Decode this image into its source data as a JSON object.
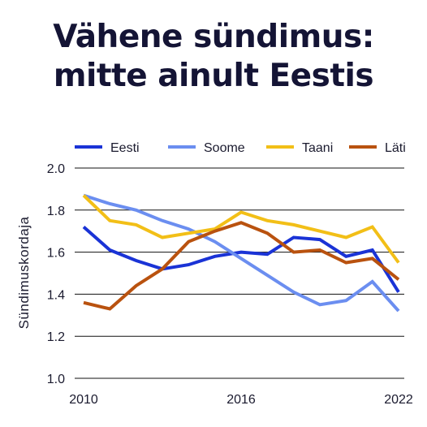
{
  "title_line1": "Vähene sündimus:",
  "title_line2": "mitte ainult Eestis",
  "colors": {
    "text": "#1a1a2e",
    "grid": "#111111"
  },
  "chart_data": {
    "type": "line",
    "title": "Vähene sündimus: mitte ainult Eestis",
    "xlabel": "",
    "ylabel": "Sündimuskordaja",
    "x": [
      2010,
      2011,
      2012,
      2013,
      2014,
      2015,
      2016,
      2017,
      2018,
      2019,
      2020,
      2021,
      2022
    ],
    "xticks": [
      2010,
      2016,
      2022
    ],
    "xtick_labels": [
      "2010",
      "2016",
      "2022"
    ],
    "ylim": [
      1.0,
      2.0
    ],
    "yticks": [
      1.0,
      1.2,
      1.4,
      1.6,
      1.8,
      2.0
    ],
    "ytick_labels": [
      "1.0",
      "1.2",
      "1.4",
      "1.6",
      "1.8",
      "2.0"
    ],
    "grid": true,
    "legend_position": "top",
    "series": [
      {
        "name": "Eesti",
        "color": "#1a33d6",
        "values": [
          1.72,
          1.61,
          1.56,
          1.52,
          1.54,
          1.58,
          1.6,
          1.59,
          1.67,
          1.66,
          1.58,
          1.61,
          1.41
        ]
      },
      {
        "name": "Soome",
        "color": "#6b8ef0",
        "values": [
          1.87,
          1.83,
          1.8,
          1.75,
          1.71,
          1.65,
          1.57,
          1.49,
          1.41,
          1.35,
          1.37,
          1.46,
          1.32
        ]
      },
      {
        "name": "Taani",
        "color": "#f2bf17",
        "values": [
          1.87,
          1.75,
          1.73,
          1.67,
          1.69,
          1.71,
          1.79,
          1.75,
          1.73,
          1.7,
          1.67,
          1.72,
          1.55
        ]
      },
      {
        "name": "Läti",
        "color": "#b9520f",
        "values": [
          1.36,
          1.33,
          1.44,
          1.52,
          1.65,
          1.7,
          1.74,
          1.69,
          1.6,
          1.61,
          1.55,
          1.57,
          1.47
        ]
      }
    ]
  }
}
